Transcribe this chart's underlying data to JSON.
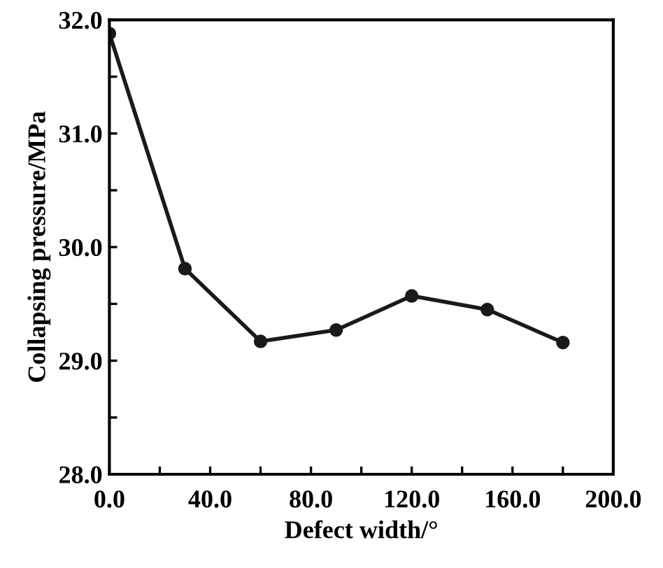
{
  "chart_data": {
    "type": "line",
    "xlabel": "Defect width/°",
    "ylabel": "Collapsing pressure/MPa",
    "x": [
      0,
      30,
      60,
      90,
      120,
      150,
      180
    ],
    "series": [
      {
        "color": "#1a1a1a",
        "values": [
          31.88,
          29.81,
          29.17,
          29.27,
          29.57,
          29.45,
          29.16
        ]
      }
    ],
    "xlim": [
      0,
      200
    ],
    "ylim": [
      28,
      32
    ],
    "xticks": [
      {
        "value": 0,
        "label": "0.0"
      },
      {
        "value": 20,
        "label": null
      },
      {
        "value": 40,
        "label": "40.0"
      },
      {
        "value": 60,
        "label": null
      },
      {
        "value": 80,
        "label": "80.0"
      },
      {
        "value": 100,
        "label": null
      },
      {
        "value": 120,
        "label": "120.0"
      },
      {
        "value": 140,
        "label": null
      },
      {
        "value": 160,
        "label": "160.0"
      },
      {
        "value": 180,
        "label": null
      },
      {
        "value": 200,
        "label": "200.0"
      }
    ],
    "yticks": [
      {
        "value": 28,
        "label": "28.0"
      },
      {
        "value": 28.5,
        "label": null
      },
      {
        "value": 29,
        "label": "29.0"
      },
      {
        "value": 29.5,
        "label": null
      },
      {
        "value": 30,
        "label": "30.0"
      },
      {
        "value": 30.5,
        "label": null
      },
      {
        "value": 31,
        "label": "31.0"
      },
      {
        "value": 31.5,
        "label": null
      },
      {
        "value": 32,
        "label": "32.0"
      }
    ],
    "marker": "circle",
    "line_style": "solid",
    "grid": false
  }
}
